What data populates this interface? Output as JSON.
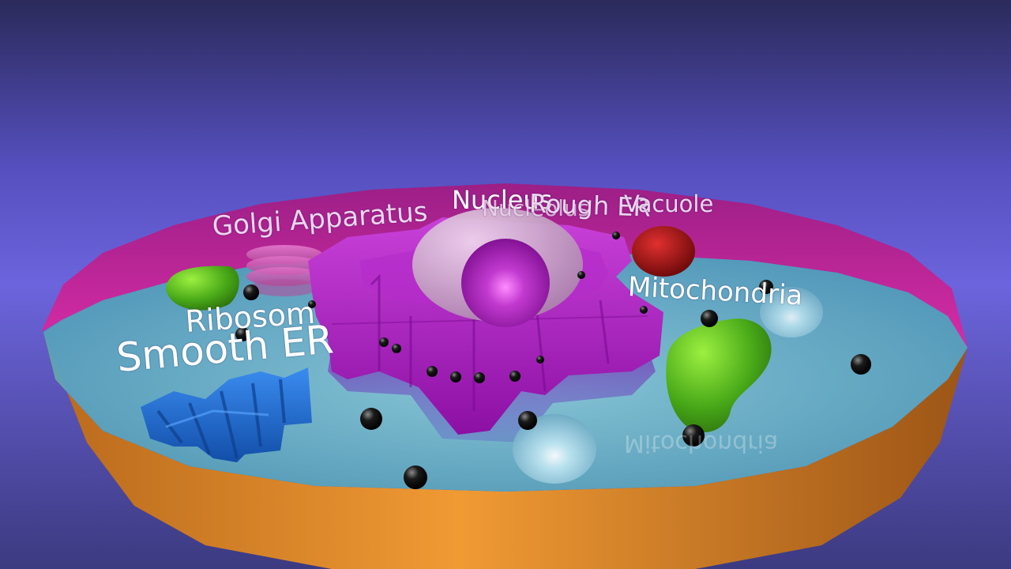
{
  "labels": {
    "golgi": "Golgi Apparatus",
    "nucleus": "Nucleus",
    "nucleolus": "Nucleolus",
    "rough_er": "Rough ER",
    "vacuole": "Vacuole",
    "mitochondria": "Mitochondria",
    "ribosome": "Ribosom",
    "smooth_er": "Smooth ER"
  },
  "colors": {
    "background_top": "#2d2a5e",
    "background_mid": "#6a62d6",
    "membrane_rim": "#c0259e",
    "cell_wall_outer": "#e7902e",
    "cytoplasm": "#6fb8c8",
    "nucleus": "#c8a4c4",
    "nucleolus": "#a020b0",
    "rough_er": "#a41ab8",
    "golgi": "#d060b8",
    "mitochondria": "#50b818",
    "vacuole": "#a81010",
    "lysosome": "#a8d8e8",
    "smooth_er": "#1c6cd0",
    "ribosome": "#101010"
  }
}
